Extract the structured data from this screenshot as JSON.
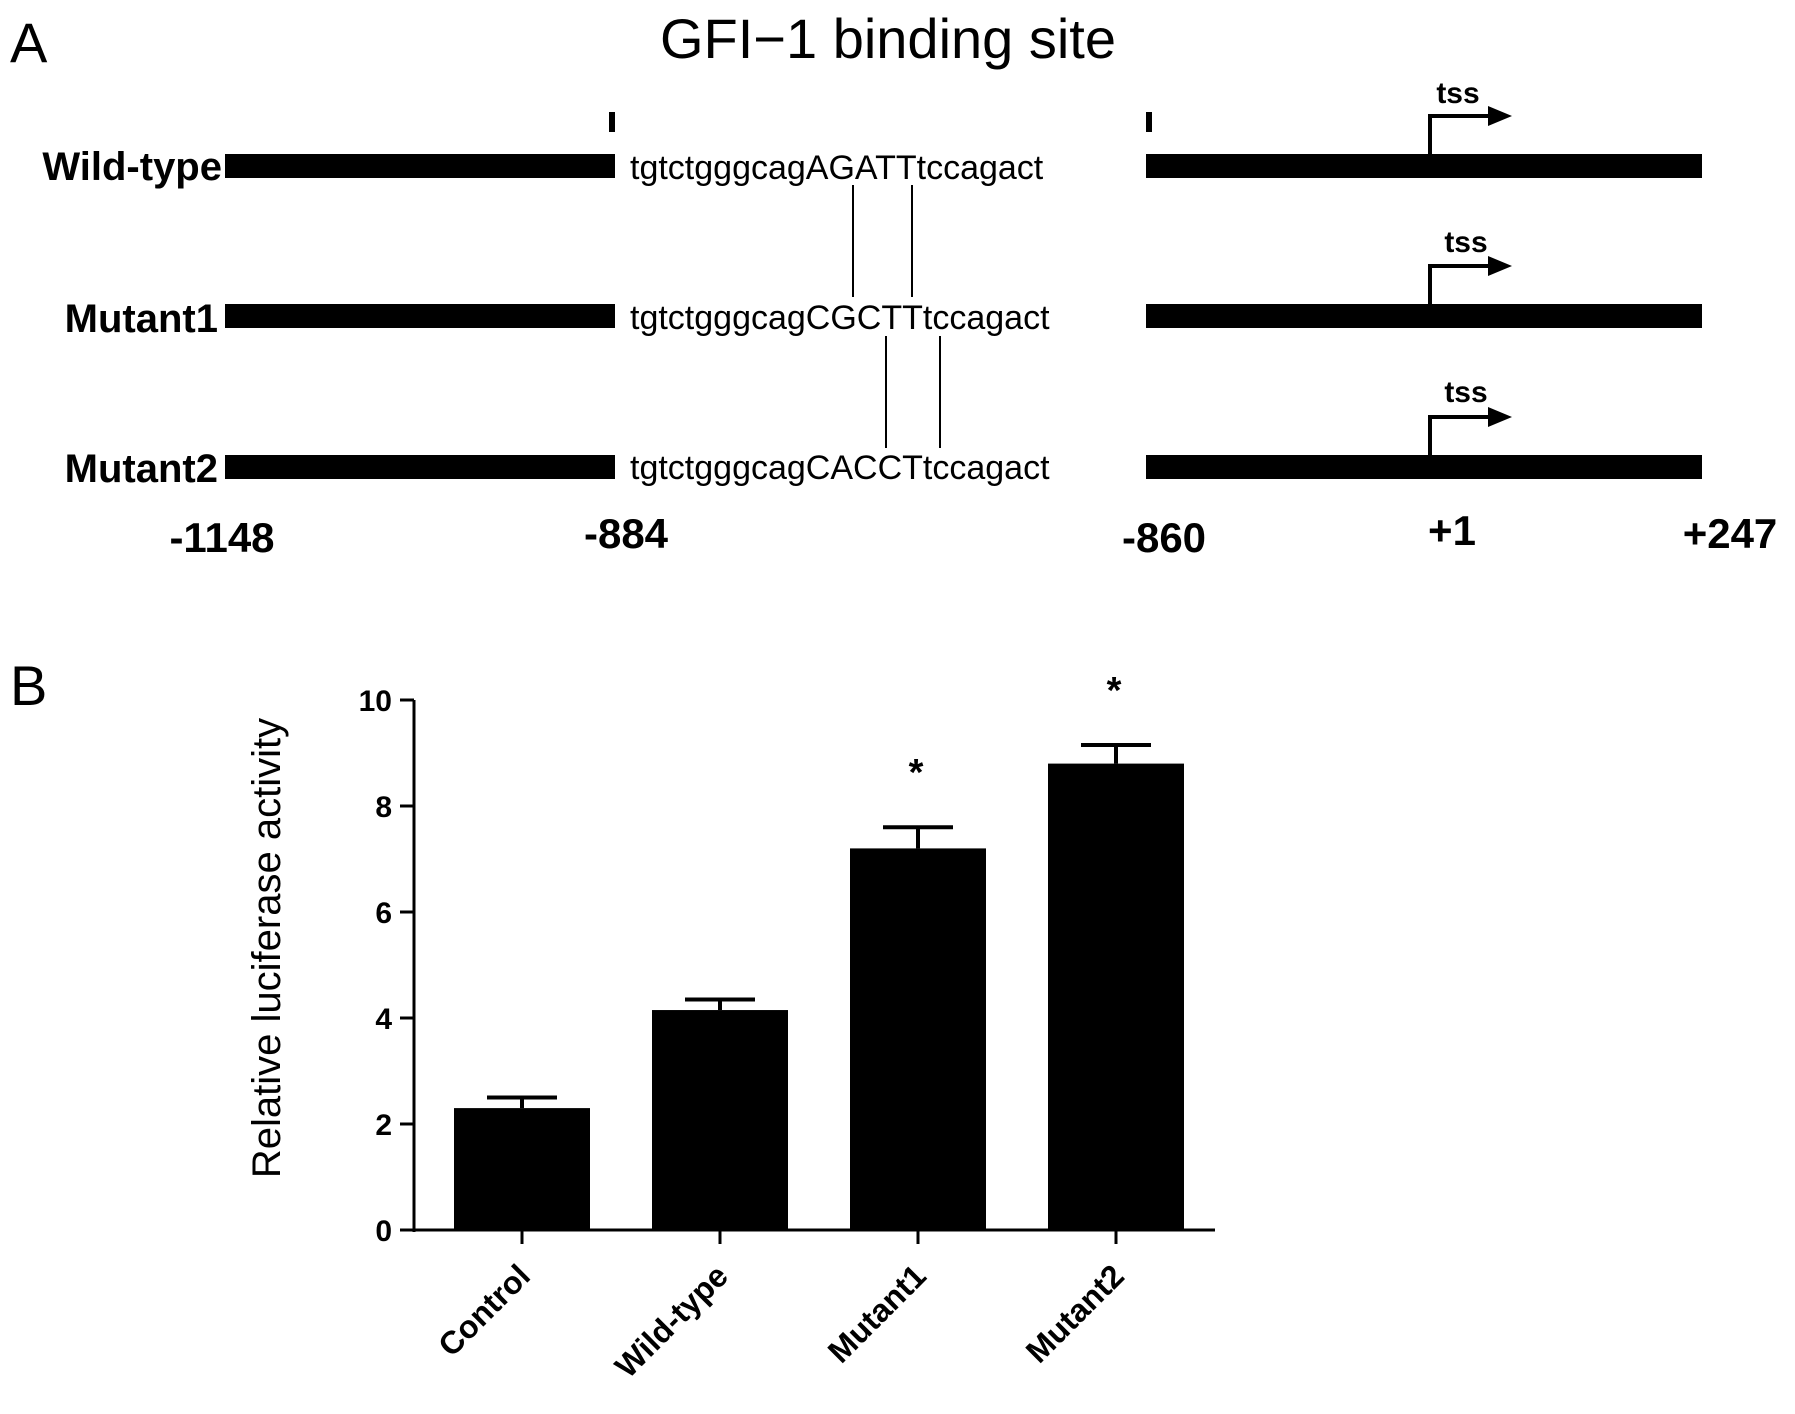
{
  "panel_a": {
    "letter": "A",
    "title": "GFI−1 binding site",
    "rows": [
      {
        "label": "Wild-type",
        "seq_prefix": "tgtctgggcag",
        "seq_core": "AGATT",
        "seq_suffix": "tccagact"
      },
      {
        "label": "Mutant1",
        "seq_prefix": "tgtctgggcag",
        "seq_core": "CGCTT",
        "seq_suffix": "tccagact"
      },
      {
        "label": "Mutant2",
        "seq_prefix": "tgtctgggcag",
        "seq_core": "CACCT",
        "seq_suffix": "tccagact"
      }
    ],
    "tss_label": "tss",
    "coordinates": [
      "-1148",
      "-884",
      "-860",
      "+1",
      "+247"
    ]
  },
  "panel_b": {
    "letter": "B"
  },
  "chart_data": {
    "type": "bar",
    "categories": [
      "Control",
      "Wild-type",
      "Mutant1",
      "Mutant2"
    ],
    "values": [
      2.3,
      4.15,
      7.2,
      8.8
    ],
    "errors": [
      0.2,
      0.2,
      0.4,
      0.35
    ],
    "significance": [
      "",
      "",
      "*",
      "*"
    ],
    "title": "",
    "xlabel": "",
    "ylabel": "Relative luciferase activity",
    "ylim": [
      0,
      10
    ],
    "yticks": [
      0,
      2,
      4,
      6,
      8,
      10
    ],
    "bar_color": "#000000",
    "grid": false,
    "legend": "none"
  }
}
